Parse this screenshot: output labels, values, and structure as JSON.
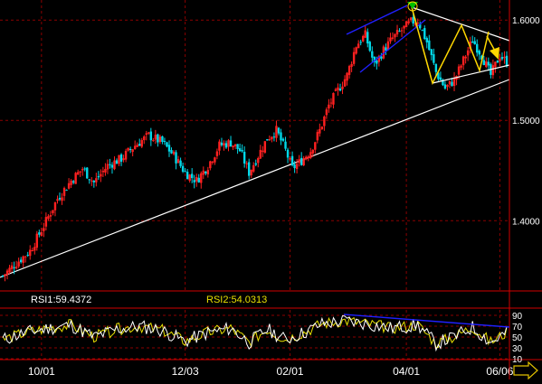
{
  "chart_data": [
    {
      "type": "candlestick",
      "ylim": [
        1.33,
        1.62
      ],
      "y_ticks": [
        1.4,
        1.5,
        1.6
      ],
      "y_tick_labels": [
        "1.4000",
        "1.5000",
        "1.6000"
      ],
      "x_tick_labels": [
        "10/01",
        "12/03",
        "02/01",
        "04/01",
        "06/06"
      ],
      "grid": true,
      "colors": {
        "up": "#ff2020",
        "down": "#00d8e8",
        "grid": "#8b0000",
        "axis": "#d00000",
        "trendline": "#ffffff",
        "channel": "#2020ff",
        "pattern": "#ffd700",
        "arrow": "#ffd700",
        "arrow_up": "#00c000",
        "tick_text": "#ffffff"
      },
      "annotations": [
        "ascending white support trendline",
        "blue rising channel (Mar–Apr)",
        "white symmetrical triangle (Apr–Jun)",
        "yellow zigzag inside triangle",
        "yellow down arrow at breakout",
        "green up arrow at high"
      ],
      "close_path": [
        {
          "i": 0,
          "y": 1.345
        },
        {
          "i": 6,
          "y": 1.358
        },
        {
          "i": 12,
          "y": 1.37
        },
        {
          "i": 18,
          "y": 1.395
        },
        {
          "i": 24,
          "y": 1.422
        },
        {
          "i": 30,
          "y": 1.44
        },
        {
          "i": 35,
          "y": 1.452
        },
        {
          "i": 40,
          "y": 1.438
        },
        {
          "i": 46,
          "y": 1.455
        },
        {
          "i": 52,
          "y": 1.462
        },
        {
          "i": 58,
          "y": 1.475
        },
        {
          "i": 64,
          "y": 1.485
        },
        {
          "i": 70,
          "y": 1.478
        },
        {
          "i": 75,
          "y": 1.465
        },
        {
          "i": 80,
          "y": 1.448
        },
        {
          "i": 85,
          "y": 1.44
        },
        {
          "i": 90,
          "y": 1.455
        },
        {
          "i": 95,
          "y": 1.475
        },
        {
          "i": 100,
          "y": 1.478
        },
        {
          "i": 104,
          "y": 1.47
        },
        {
          "i": 108,
          "y": 1.448
        },
        {
          "i": 112,
          "y": 1.465
        },
        {
          "i": 116,
          "y": 1.482
        },
        {
          "i": 120,
          "y": 1.49
        },
        {
          "i": 124,
          "y": 1.47
        },
        {
          "i": 127,
          "y": 1.452
        },
        {
          "i": 131,
          "y": 1.46
        },
        {
          "i": 135,
          "y": 1.47
        },
        {
          "i": 139,
          "y": 1.49
        },
        {
          "i": 143,
          "y": 1.515
        },
        {
          "i": 147,
          "y": 1.53
        },
        {
          "i": 151,
          "y": 1.545
        },
        {
          "i": 155,
          "y": 1.575
        },
        {
          "i": 159,
          "y": 1.585
        },
        {
          "i": 163,
          "y": 1.555
        },
        {
          "i": 167,
          "y": 1.57
        },
        {
          "i": 171,
          "y": 1.582
        },
        {
          "i": 175,
          "y": 1.59
        },
        {
          "i": 179,
          "y": 1.598
        },
        {
          "i": 182,
          "y": 1.6
        },
        {
          "i": 186,
          "y": 1.578
        },
        {
          "i": 190,
          "y": 1.548
        },
        {
          "i": 194,
          "y": 1.532
        },
        {
          "i": 198,
          "y": 1.54
        },
        {
          "i": 202,
          "y": 1.56
        },
        {
          "i": 206,
          "y": 1.58
        },
        {
          "i": 210,
          "y": 1.565
        },
        {
          "i": 214,
          "y": 1.545
        },
        {
          "i": 218,
          "y": 1.565
        },
        {
          "i": 221,
          "y": 1.558
        }
      ]
    },
    {
      "type": "line",
      "ylim": [
        10,
        100
      ],
      "y_ticks": [
        10,
        30,
        50,
        70,
        90
      ],
      "y_tick_labels": [
        "10",
        "30",
        "50",
        "70",
        "90"
      ],
      "grid": true,
      "legend": [
        {
          "label": "RSI1:59.4372",
          "color": "#ffffff"
        },
        {
          "label": "RSI2:54.0313",
          "color": "#e8e000"
        }
      ],
      "series": [
        {
          "name": "RSI1",
          "color": "#ffffff",
          "final": 59.4372
        },
        {
          "name": "RSI2",
          "color": "#e8e000",
          "final": 54.0313
        }
      ],
      "rsi_shape": [
        {
          "i": 0,
          "y": 45
        },
        {
          "i": 10,
          "y": 58
        },
        {
          "i": 20,
          "y": 66
        },
        {
          "i": 30,
          "y": 72
        },
        {
          "i": 40,
          "y": 50
        },
        {
          "i": 50,
          "y": 64
        },
        {
          "i": 60,
          "y": 70
        },
        {
          "i": 70,
          "y": 62
        },
        {
          "i": 80,
          "y": 42
        },
        {
          "i": 90,
          "y": 58
        },
        {
          "i": 100,
          "y": 66
        },
        {
          "i": 108,
          "y": 40
        },
        {
          "i": 116,
          "y": 64
        },
        {
          "i": 124,
          "y": 45
        },
        {
          "i": 132,
          "y": 58
        },
        {
          "i": 140,
          "y": 74
        },
        {
          "i": 150,
          "y": 80
        },
        {
          "i": 160,
          "y": 74
        },
        {
          "i": 170,
          "y": 66
        },
        {
          "i": 182,
          "y": 72
        },
        {
          "i": 190,
          "y": 38
        },
        {
          "i": 198,
          "y": 50
        },
        {
          "i": 206,
          "y": 68
        },
        {
          "i": 214,
          "y": 40
        },
        {
          "i": 221,
          "y": 58
        }
      ],
      "annotations": [
        "blue descending divergence line"
      ]
    }
  ],
  "footer": {
    "nav_arrow": "right-arrow-icon"
  }
}
